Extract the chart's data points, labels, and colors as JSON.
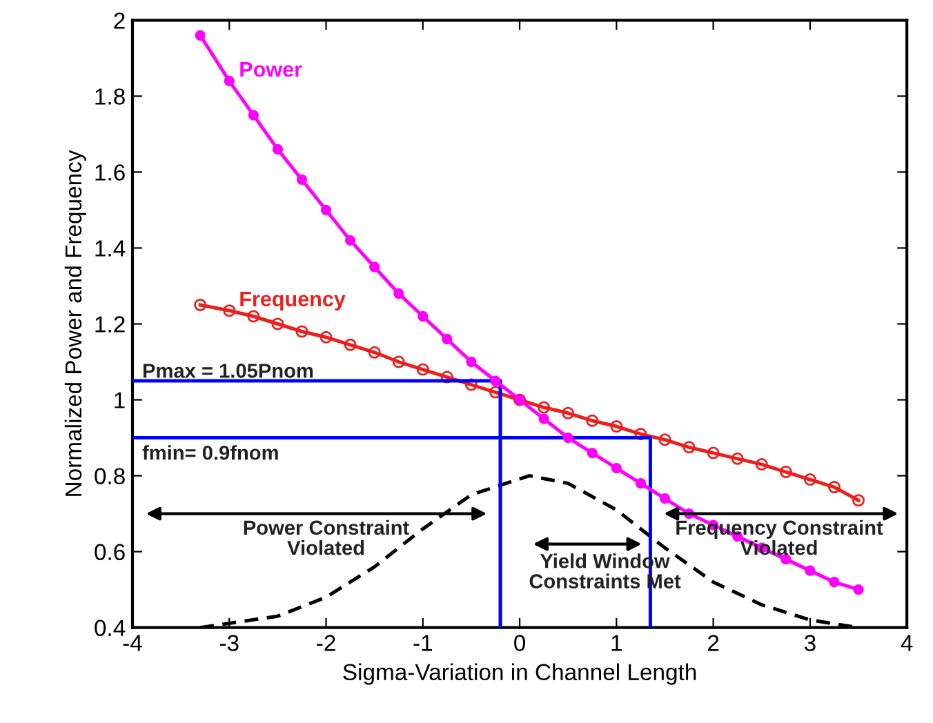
{
  "chart_data": {
    "type": "line",
    "xlabel": "Sigma-Variation in Channel Length",
    "ylabel": "Normalized Power and Frequency",
    "xlim": [
      -4,
      4
    ],
    "xticks": [
      -4,
      -3,
      -2,
      -1,
      0,
      1,
      2,
      3,
      4
    ],
    "ylim": [
      0.4,
      2
    ],
    "yticks": [
      0.4,
      0.6,
      0.8,
      1,
      1.2,
      1.4,
      1.6,
      1.8,
      2
    ],
    "grid": false,
    "series": [
      {
        "name": "Power",
        "color": "#ff00ff",
        "marker": "circle",
        "line_style": "solid",
        "x": [
          -3.3,
          -3,
          -2.75,
          -2.5,
          -2.25,
          -2,
          -1.75,
          -1.5,
          -1.25,
          -1,
          -0.75,
          -0.5,
          -0.25,
          0,
          0.25,
          0.5,
          0.75,
          1,
          1.25,
          1.5,
          1.75,
          2,
          2.25,
          2.5,
          2.75,
          3,
          3.25,
          3.5
        ],
        "values": [
          1.96,
          1.84,
          1.75,
          1.66,
          1.58,
          1.5,
          1.42,
          1.35,
          1.28,
          1.22,
          1.16,
          1.1,
          1.05,
          1.0,
          0.95,
          0.9,
          0.86,
          0.82,
          0.78,
          0.74,
          0.7,
          0.67,
          0.64,
          0.61,
          0.58,
          0.55,
          0.52,
          0.5
        ]
      },
      {
        "name": "Frequency",
        "color": "#e8201e",
        "marker": "circle",
        "line_style": "solid",
        "x": [
          -3.3,
          -3,
          -2.75,
          -2.5,
          -2.25,
          -2,
          -1.75,
          -1.5,
          -1.25,
          -1,
          -0.75,
          -0.5,
          -0.25,
          0,
          0.25,
          0.5,
          0.75,
          1,
          1.25,
          1.5,
          1.75,
          2,
          2.25,
          2.5,
          2.75,
          3,
          3.25,
          3.5
        ],
        "values": [
          1.25,
          1.235,
          1.22,
          1.2,
          1.18,
          1.165,
          1.145,
          1.125,
          1.1,
          1.08,
          1.06,
          1.04,
          1.02,
          1.0,
          0.98,
          0.965,
          0.945,
          0.93,
          0.91,
          0.895,
          0.875,
          0.86,
          0.845,
          0.83,
          0.81,
          0.79,
          0.77,
          0.735
        ]
      },
      {
        "color": "#000000",
        "marker": "none",
        "line_style": "dashed",
        "x": [
          -3.3,
          -2.5,
          -2,
          -1.5,
          -1,
          -0.5,
          0.1,
          0.5,
          1,
          1.5,
          2,
          2.5,
          3,
          3.5
        ],
        "values": [
          0.4,
          0.43,
          0.48,
          0.56,
          0.66,
          0.75,
          0.8,
          0.78,
          0.71,
          0.61,
          0.52,
          0.46,
          0.42,
          0.4
        ]
      },
      {
        "color": "#0000ff",
        "marker": "none",
        "line_style": "solid",
        "x": [
          -4,
          -0.2,
          -0.2
        ],
        "values": [
          1.05,
          1.05,
          0.4
        ]
      },
      {
        "color": "#0000ff",
        "marker": "none",
        "line_style": "solid",
        "x": [
          -4,
          1.35,
          1.35
        ],
        "values": [
          0.9,
          0.9,
          0.4
        ]
      }
    ],
    "annotations": [
      "Pmax = 1.05Pnom",
      "fmin= 0.9fnom",
      "Power Constraint\nViolated",
      "Yield Window\nConstraints Met",
      "Frequency Constraint\nViolated"
    ]
  }
}
